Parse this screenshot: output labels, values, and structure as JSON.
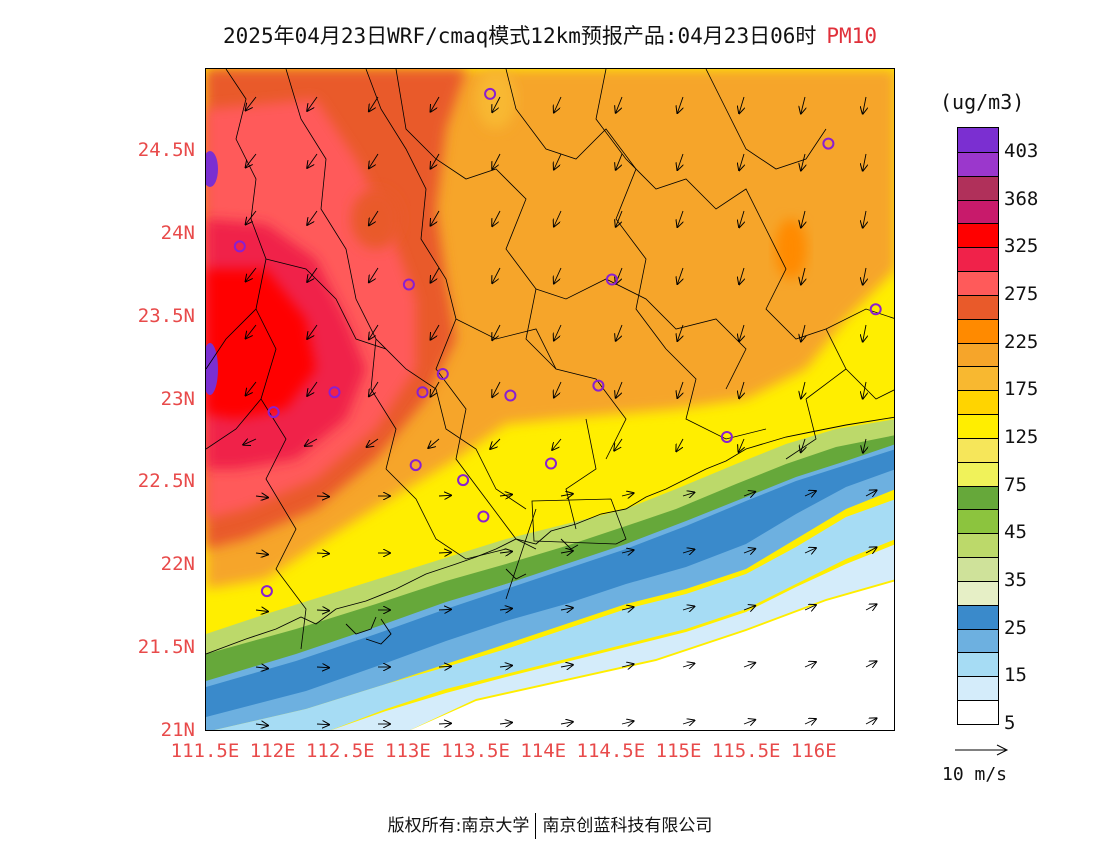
{
  "header": {
    "title": "2025年04月23日WRF/cmaq模式12km预报产品:04月23日06时",
    "variable": "PM10"
  },
  "map": {
    "lat_ticks": [
      "24.5N",
      "24N",
      "23.5N",
      "23N",
      "22.5N",
      "22N",
      "21.5N",
      "21N"
    ],
    "lon_ticks": [
      "111.5E",
      "112E",
      "112.5E",
      "113E",
      "113.5E",
      "114E",
      "114.5E",
      "115E",
      "115.5E",
      "116E"
    ],
    "lon_range": [
      111.5,
      116.6
    ],
    "lat_range": [
      21.0,
      25.0
    ],
    "station_markers": [
      {
        "lon": 113.6,
        "lat": 24.85
      },
      {
        "lon": 116.1,
        "lat": 24.55
      },
      {
        "lon": 111.75,
        "lat": 23.93
      },
      {
        "lon": 113.0,
        "lat": 23.7
      },
      {
        "lon": 114.5,
        "lat": 23.73
      },
      {
        "lon": 116.45,
        "lat": 23.55
      },
      {
        "lon": 113.25,
        "lat": 23.16
      },
      {
        "lon": 112.45,
        "lat": 23.05
      },
      {
        "lon": 113.1,
        "lat": 23.05
      },
      {
        "lon": 113.75,
        "lat": 23.03
      },
      {
        "lon": 114.4,
        "lat": 23.09
      },
      {
        "lon": 112.0,
        "lat": 22.93
      },
      {
        "lon": 115.35,
        "lat": 22.78
      },
      {
        "lon": 113.05,
        "lat": 22.61
      },
      {
        "lon": 114.05,
        "lat": 22.62
      },
      {
        "lon": 113.4,
        "lat": 22.52
      },
      {
        "lon": 113.55,
        "lat": 22.3
      },
      {
        "lon": 111.95,
        "lat": 21.85
      }
    ]
  },
  "legend": {
    "unit": "(ug/m3)",
    "labels": [
      "403",
      "368",
      "325",
      "275",
      "225",
      "175",
      "125",
      "75",
      "45",
      "35",
      "25",
      "15",
      "5"
    ],
    "colors": [
      "#7b2fd1",
      "#9b37cc",
      "#b0305a",
      "#c81a6b",
      "#ff0000",
      "#f0224a",
      "#ff5a5a",
      "#e95a2a",
      "#ff8a00",
      "#f6a52a",
      "#f8b830",
      "#ffd400",
      "#ffee00",
      "#f6e65a",
      "#f0f25a",
      "#66a83a",
      "#8cc43e",
      "#bcd96a",
      "#cfe29a",
      "#e6efc6",
      "#3a8acb",
      "#6db0e0",
      "#a6dcf4",
      "#d4ecfa",
      "#ffffff"
    ],
    "wind_ref": "10 m/s"
  },
  "footer": {
    "left": "版权所有:南京大学",
    "right": "南京创蓝科技有限公司"
  }
}
